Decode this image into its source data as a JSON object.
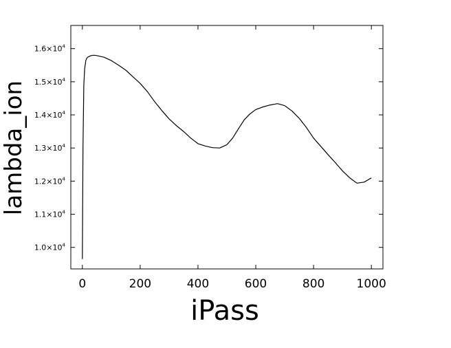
{
  "chart_data": {
    "type": "line",
    "xlabel": "iPass",
    "ylabel": "lambda_ion",
    "xlim": [
      -40,
      1040
    ],
    "ylim": [
      9350,
      16700
    ],
    "grid": false,
    "x_ticks": [
      0,
      200,
      400,
      600,
      800,
      1000
    ],
    "x_tick_labels": [
      "0",
      "200",
      "400",
      "600",
      "800",
      "1000"
    ],
    "y_ticks": [
      10000,
      11000,
      12000,
      13000,
      14000,
      15000,
      16000
    ],
    "y_tick_labels": [
      {
        "mantissa": "1.0",
        "times": "×",
        "base": "10",
        "exp": "4"
      },
      {
        "mantissa": "1.1",
        "times": "×",
        "base": "10",
        "exp": "4"
      },
      {
        "mantissa": "1.2",
        "times": "×",
        "base": "10",
        "exp": "4"
      },
      {
        "mantissa": "1.3",
        "times": "×",
        "base": "10",
        "exp": "4"
      },
      {
        "mantissa": "1.4",
        "times": "×",
        "base": "10",
        "exp": "4"
      },
      {
        "mantissa": "1.5",
        "times": "×",
        "base": "10",
        "exp": "4"
      },
      {
        "mantissa": "1.6",
        "times": "×",
        "base": "10",
        "exp": "4"
      }
    ],
    "series": [
      {
        "color": "#000000",
        "x": [
          0,
          2,
          5,
          8,
          12,
          16,
          20,
          25,
          30,
          40,
          50,
          60,
          75,
          100,
          125,
          150,
          175,
          200,
          225,
          250,
          275,
          300,
          325,
          350,
          375,
          400,
          425,
          450,
          475,
          500,
          520,
          540,
          560,
          580,
          600,
          625,
          650,
          675,
          700,
          725,
          750,
          775,
          800,
          825,
          850,
          875,
          900,
          925,
          950,
          975,
          1000
        ],
        "y": [
          9650,
          13000,
          14900,
          15400,
          15650,
          15720,
          15750,
          15770,
          15790,
          15800,
          15790,
          15770,
          15740,
          15640,
          15500,
          15350,
          15150,
          14950,
          14700,
          14400,
          14130,
          13880,
          13680,
          13500,
          13300,
          13130,
          13060,
          13010,
          13000,
          13100,
          13300,
          13580,
          13850,
          14030,
          14160,
          14240,
          14300,
          14340,
          14280,
          14120,
          13900,
          13620,
          13300,
          13050,
          12800,
          12560,
          12310,
          12100,
          11940,
          11970,
          12100
        ]
      }
    ]
  }
}
